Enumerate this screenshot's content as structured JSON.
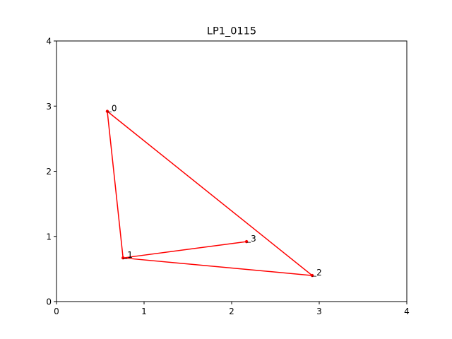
{
  "chart_data": {
    "type": "line",
    "title": "LP1_0115",
    "xlabel": "",
    "ylabel": "",
    "xlim": [
      0,
      4
    ],
    "ylim": [
      0,
      4
    ],
    "xticks": [
      0,
      1,
      2,
      3,
      4
    ],
    "yticks": [
      0,
      1,
      2,
      3,
      4
    ],
    "xtick_labels": [
      "0",
      "1",
      "2",
      "3",
      "4"
    ],
    "ytick_labels": [
      "0",
      "1",
      "2",
      "3",
      "4"
    ],
    "grid": false,
    "line_color": "#ff0000",
    "series": [
      {
        "points": [
          {
            "label": "0",
            "x": 0.58,
            "y": 2.92
          },
          {
            "label": "1",
            "x": 0.76,
            "y": 0.67
          },
          {
            "label": "2",
            "x": 2.92,
            "y": 0.4
          },
          {
            "label": "3",
            "x": 2.17,
            "y": 0.92
          }
        ],
        "path_order": [
          "0",
          "1",
          "3",
          "1",
          "2",
          "0"
        ]
      }
    ]
  }
}
